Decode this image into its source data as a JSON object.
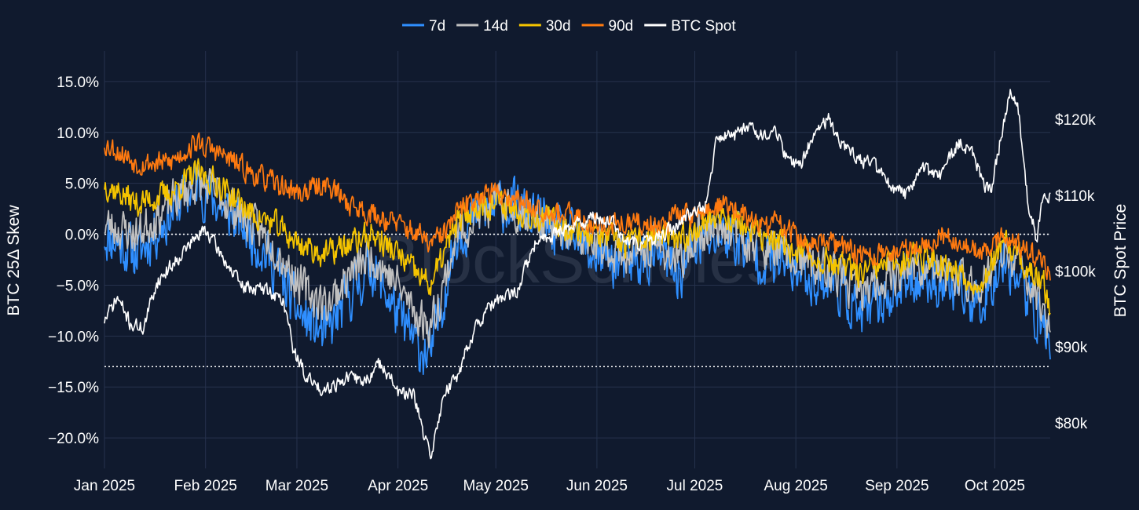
{
  "chart_data": {
    "type": "line",
    "watermark": "BlockScholes",
    "legend_position": "top-center",
    "x": {
      "tick_labels": [
        "Jan 2025",
        "Feb 2025",
        "Mar 2025",
        "Apr 2025",
        "May 2025",
        "Jun 2025",
        "Jul 2025",
        "Aug 2025",
        "Sep 2025",
        "Oct 2025"
      ],
      "tick_days": [
        0,
        31,
        59,
        90,
        120,
        151,
        181,
        212,
        243,
        273
      ],
      "range_days": [
        0,
        290
      ]
    },
    "y_left": {
      "label": "BTC 25Δ Skew",
      "range": [
        -23,
        18
      ],
      "ticks": [
        15,
        10,
        5,
        0,
        -5,
        -10,
        -15,
        -20
      ],
      "tick_labels": [
        "15.0%",
        "10.0%",
        "5.0%",
        "0.0%",
        "−5.0%",
        "−10.0%",
        "−15.0%",
        "−20.0%"
      ],
      "reference_lines": [
        0,
        -13
      ]
    },
    "y_right": {
      "label": "BTC Spot Price",
      "range": [
        74000,
        129000
      ],
      "ticks": [
        120000,
        110000,
        100000,
        90000,
        80000
      ],
      "tick_labels": [
        "$120k",
        "$110k",
        "$100k",
        "$90k",
        "$80k"
      ]
    },
    "series": [
      {
        "name": "7d",
        "color": "#2f8fff",
        "axis": "left",
        "noise": 3.6,
        "seed": 11,
        "x": [
          0,
          10,
          20,
          28,
          35,
          45,
          52,
          60,
          68,
          75,
          82,
          90,
          96,
          100,
          104,
          108,
          115,
          122,
          130,
          140,
          150,
          160,
          170,
          176,
          182,
          190,
          200,
          208,
          215,
          225,
          232,
          240,
          250,
          258,
          268,
          276,
          280,
          284,
          288,
          290
        ],
        "y": [
          0,
          -2,
          2,
          5,
          3,
          0,
          -3,
          -8,
          -10,
          -6,
          -3,
          -8,
          -11,
          -12,
          -6,
          0,
          2,
          3,
          2,
          0,
          -2,
          -3,
          -2,
          -4,
          -1,
          0,
          -2,
          -3,
          -4,
          -5,
          -8,
          -6,
          -4,
          -5,
          -7,
          -2,
          -4,
          -7,
          -9,
          -11
        ]
      },
      {
        "name": "14d",
        "color": "#c0c0c0",
        "axis": "left",
        "noise": 2.8,
        "seed": 23,
        "x": [
          0,
          10,
          20,
          28,
          35,
          45,
          52,
          60,
          68,
          75,
          82,
          90,
          96,
          100,
          104,
          108,
          115,
          122,
          130,
          140,
          150,
          160,
          170,
          176,
          182,
          190,
          200,
          208,
          215,
          225,
          232,
          240,
          250,
          258,
          268,
          276,
          280,
          284,
          288,
          290
        ],
        "y": [
          1,
          0,
          3,
          5,
          4,
          1,
          -1,
          -5,
          -7,
          -4,
          -2,
          -5,
          -8,
          -9,
          -5,
          0,
          2,
          3,
          2,
          0,
          -1,
          -2,
          -1,
          -3,
          0,
          1,
          -1,
          -2,
          -3,
          -4,
          -6,
          -4,
          -3,
          -4,
          -5,
          -2,
          -3,
          -5,
          -7,
          -9
        ]
      },
      {
        "name": "30d",
        "color": "#f5c400",
        "axis": "left",
        "noise": 1.9,
        "seed": 37,
        "x": [
          0,
          10,
          20,
          28,
          35,
          45,
          52,
          60,
          68,
          75,
          82,
          90,
          96,
          100,
          104,
          108,
          115,
          122,
          130,
          140,
          150,
          160,
          170,
          176,
          182,
          190,
          200,
          208,
          215,
          225,
          232,
          240,
          250,
          258,
          268,
          276,
          280,
          284,
          288,
          290
        ],
        "y": [
          5,
          3,
          4,
          6,
          5,
          2,
          1,
          -1,
          -2,
          -1,
          0,
          -2,
          -4,
          -5,
          -2,
          1,
          3,
          3,
          2,
          1,
          0,
          -1,
          0,
          -1,
          1,
          2,
          0,
          -1,
          -2,
          -3,
          -4,
          -3,
          -2,
          -3,
          -5,
          -1,
          -2,
          -4,
          -5,
          -7
        ]
      },
      {
        "name": "90d",
        "color": "#ff7a10",
        "axis": "left",
        "noise": 1.6,
        "seed": 53,
        "x": [
          0,
          10,
          20,
          28,
          35,
          45,
          52,
          60,
          68,
          75,
          82,
          90,
          96,
          100,
          104,
          108,
          115,
          122,
          130,
          140,
          150,
          160,
          170,
          176,
          182,
          190,
          200,
          208,
          215,
          225,
          232,
          240,
          250,
          258,
          268,
          276,
          280,
          284,
          288,
          290
        ],
        "y": [
          9,
          7,
          7,
          9,
          8,
          6,
          5,
          4,
          5,
          3,
          2,
          1,
          0,
          -1,
          0,
          2,
          4,
          4,
          3,
          2,
          1,
          1,
          1,
          2,
          2,
          3,
          1,
          1,
          -1,
          -1,
          -2,
          -2,
          -1,
          0,
          -2,
          0,
          -1,
          -2,
          -3,
          -4
        ]
      },
      {
        "name": "BTC Spot",
        "color": "#ffffff",
        "axis": "right",
        "noise": 1300,
        "seed": 71,
        "x": [
          0,
          4,
          8,
          12,
          16,
          20,
          26,
          31,
          36,
          42,
          50,
          55,
          58,
          62,
          66,
          70,
          75,
          80,
          85,
          90,
          95,
          98,
          100,
          102,
          104,
          108,
          112,
          116,
          120,
          126,
          132,
          140,
          150,
          156,
          160,
          168,
          176,
          180,
          184,
          188,
          192,
          198,
          202,
          206,
          210,
          214,
          218,
          222,
          226,
          230,
          236,
          240,
          246,
          250,
          256,
          262,
          266,
          270,
          272,
          275,
          278,
          280,
          283,
          286,
          288,
          290
        ],
        "y": [
          93500,
          96500,
          93000,
          92500,
          98500,
          100500,
          103500,
          105500,
          102000,
          98000,
          97500,
          96000,
          89500,
          86000,
          84500,
          85000,
          86000,
          85500,
          88000,
          84000,
          83500,
          78000,
          76000,
          79000,
          84000,
          86000,
          91000,
          94000,
          96000,
          97000,
          103500,
          105500,
          107000,
          106500,
          103500,
          104000,
          106000,
          108000,
          108500,
          118000,
          117500,
          119500,
          117500,
          118500,
          114000,
          114500,
          118500,
          120000,
          117000,
          115000,
          114000,
          111500,
          110000,
          113500,
          112500,
          117000,
          115500,
          111000,
          110500,
          118000,
          124000,
          122000,
          109500,
          104000,
          111000,
          109500
        ]
      }
    ]
  }
}
